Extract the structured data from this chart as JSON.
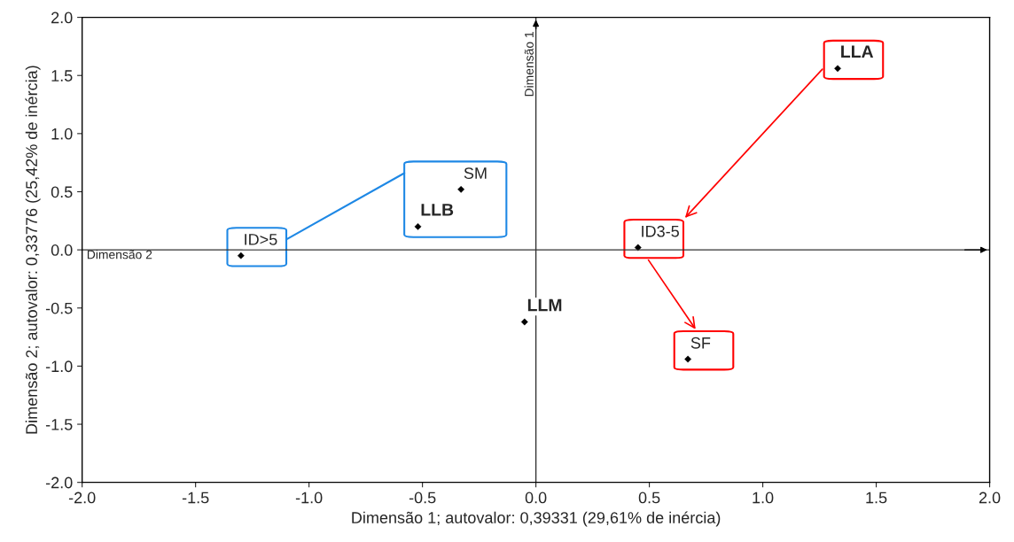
{
  "chart_data": {
    "type": "scatter",
    "xlabel": "Dimensão 1; autovalor: 0,39331 (29,61% de inércia)",
    "ylabel": "Dimensão 2; autovalor: 0,33776 (25,42% de inércia)",
    "series": [
      {
        "color": "#000000",
        "x": [
          1.33,
          -0.52,
          -0.05
        ],
        "values": [
          1.56,
          0.2,
          -0.62
        ],
        "value_labels": [
          "LLA",
          "LLB",
          "LLM"
        ]
      },
      {
        "color": "#000000",
        "x": [
          -0.33,
          -1.3,
          0.45,
          0.67
        ],
        "values": [
          0.52,
          -0.05,
          0.02,
          -0.94
        ],
        "value_labels": [
          "SM",
          "ID>5",
          "ID3-5",
          "SF"
        ]
      }
    ],
    "marker": "diamond",
    "xlim": [
      -2.0,
      2.0
    ],
    "ylim": [
      -2.0,
      2.0
    ],
    "xticks": [
      {
        "value": -2.0,
        "label": "-2.0"
      },
      {
        "value": -1.5,
        "label": "-1.5"
      },
      {
        "value": -1.0,
        "label": "-1.0"
      },
      {
        "value": -0.5,
        "label": "-0.5"
      },
      {
        "value": 0.0,
        "label": "0.0"
      },
      {
        "value": 0.5,
        "label": "0.5"
      },
      {
        "value": 1.0,
        "label": "1.0"
      },
      {
        "value": 1.5,
        "label": "1.5"
      },
      {
        "value": 2.0,
        "label": "2.0"
      }
    ],
    "yticks": [
      {
        "value": -2.0,
        "label": "-2.0"
      },
      {
        "value": -1.5,
        "label": "-1.5"
      },
      {
        "value": -1.0,
        "label": "-1.0"
      },
      {
        "value": -0.5,
        "label": "-0.5"
      },
      {
        "value": 0.0,
        "label": "0.0"
      },
      {
        "value": 0.5,
        "label": "0.5"
      },
      {
        "value": 1.0,
        "label": "1.0"
      },
      {
        "value": 1.5,
        "label": "1.5"
      },
      {
        "value": 2.0,
        "label": "2.0"
      }
    ],
    "ref_lines": [
      {
        "axis": "x",
        "value": 0,
        "label": "Dimensão 1"
      },
      {
        "axis": "y",
        "value": 0,
        "label": "Dimensão 2"
      }
    ],
    "grid": false,
    "legend": false
  }
}
